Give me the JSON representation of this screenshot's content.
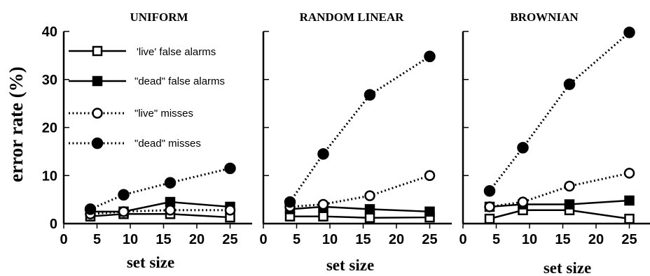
{
  "figure": {
    "ylabel": "error rate (%)",
    "legend": [
      {
        "series": "live_fa",
        "label": "'live' false alarms",
        "style": "solid",
        "marker": "open-square"
      },
      {
        "series": "dead_fa",
        "label": "\"dead\" false alarms",
        "style": "solid",
        "marker": "filled-square"
      },
      {
        "series": "live_miss",
        "label": "\"live\" misses",
        "style": "dotted",
        "marker": "open-circle"
      },
      {
        "series": "dead_miss",
        "label": "\"dead\" misses",
        "style": "dotted",
        "marker": "filled-circle"
      }
    ]
  },
  "chart_data": [
    {
      "type": "line",
      "title": "UNIFORM",
      "xlabel": "set size",
      "ylabel": "error rate (%)",
      "xlim": [
        0,
        27
      ],
      "ylim": [
        0,
        40
      ],
      "xticks": [
        0,
        5,
        10,
        15,
        20,
        25
      ],
      "yticks": [
        0,
        10,
        20,
        30,
        40
      ],
      "x": [
        4,
        9,
        16,
        25
      ],
      "series": [
        {
          "name": "'live' false alarms",
          "key": "live_fa",
          "values": [
            1.5,
            2.0,
            2.0,
            1.3
          ]
        },
        {
          "name": "\"dead\" false alarms",
          "key": "dead_fa",
          "values": [
            2.5,
            2.5,
            4.5,
            3.5
          ]
        },
        {
          "name": "\"live\" misses",
          "key": "live_miss",
          "values": [
            2.0,
            2.5,
            2.8,
            2.8
          ]
        },
        {
          "name": "\"dead\" misses",
          "key": "dead_miss",
          "values": [
            3.0,
            6.0,
            8.5,
            11.5
          ]
        }
      ]
    },
    {
      "type": "line",
      "title": "RANDOM LINEAR",
      "xlabel": "set size",
      "ylabel": "",
      "xlim": [
        0,
        27
      ],
      "ylim": [
        0,
        40
      ],
      "xticks": [
        0,
        5,
        10,
        15,
        20,
        25
      ],
      "yticks": [
        0,
        10,
        20,
        30,
        40
      ],
      "x": [
        4,
        9,
        16,
        25
      ],
      "series": [
        {
          "name": "'live' false alarms",
          "key": "live_fa",
          "values": [
            1.5,
            1.5,
            1.2,
            1.3
          ]
        },
        {
          "name": "\"dead\" false alarms",
          "key": "dead_fa",
          "values": [
            3.0,
            3.5,
            3.0,
            2.5
          ]
        },
        {
          "name": "\"live\" misses",
          "key": "live_miss",
          "values": [
            3.5,
            4.0,
            5.8,
            10.0
          ]
        },
        {
          "name": "\"dead\" misses",
          "key": "dead_miss",
          "values": [
            4.5,
            14.5,
            26.8,
            34.8
          ]
        }
      ]
    },
    {
      "type": "line",
      "title": "BROWNIAN",
      "xlabel": "set size",
      "ylabel": "",
      "xlim": [
        0,
        27
      ],
      "ylim": [
        0,
        40
      ],
      "xticks": [
        0,
        5,
        10,
        15,
        20,
        25
      ],
      "yticks": [
        0,
        10,
        20,
        30,
        40
      ],
      "x": [
        4,
        9,
        16,
        25
      ],
      "series": [
        {
          "name": "'live' false alarms",
          "key": "live_fa",
          "values": [
            1.0,
            2.8,
            2.8,
            1.0
          ]
        },
        {
          "name": "\"dead\" false alarms",
          "key": "dead_fa",
          "values": [
            3.5,
            4.0,
            4.0,
            4.8
          ]
        },
        {
          "name": "\"live\" misses",
          "key": "live_miss",
          "values": [
            3.5,
            4.5,
            7.8,
            10.5
          ]
        },
        {
          "name": "\"dead\" misses",
          "key": "dead_miss",
          "values": [
            6.8,
            15.8,
            29.0,
            39.8
          ]
        }
      ]
    }
  ]
}
